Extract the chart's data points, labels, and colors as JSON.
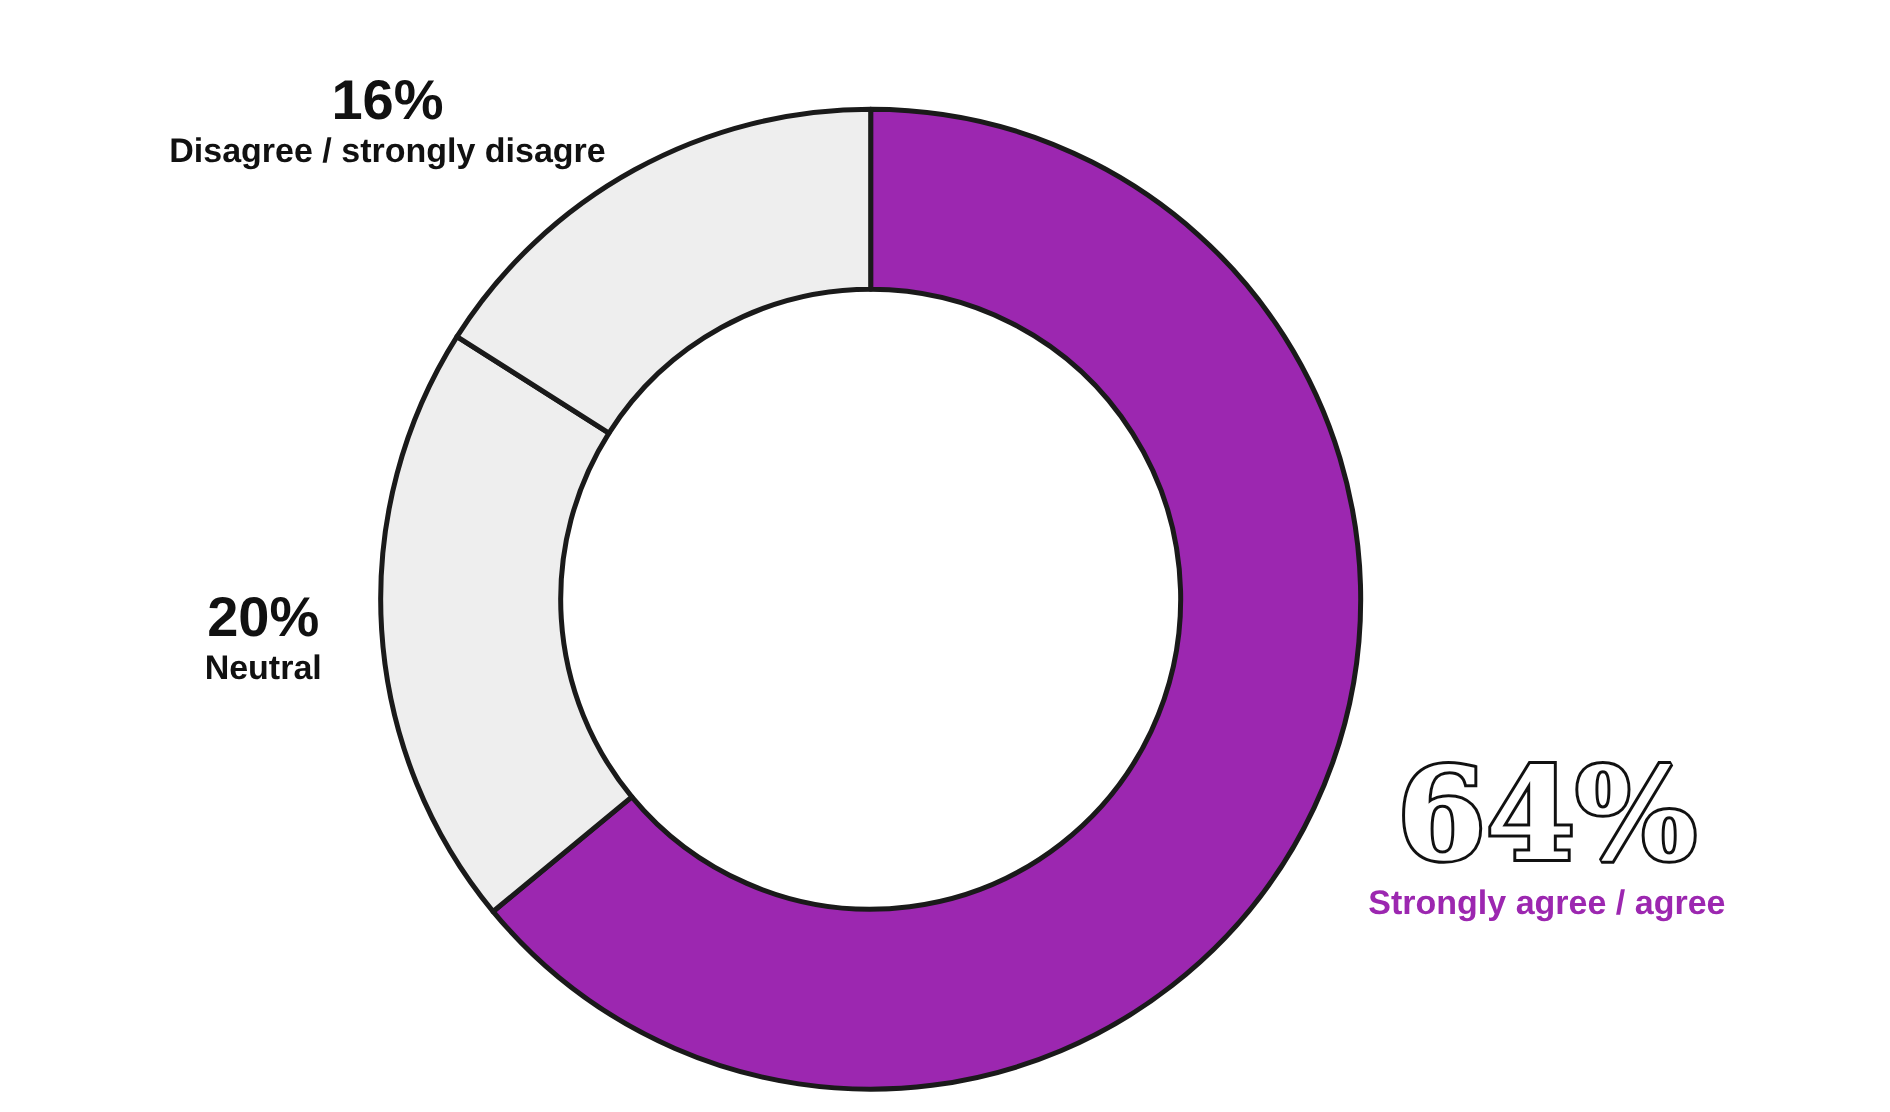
{
  "chart_data": {
    "type": "donut",
    "categories": [
      "Strongly agree / agree",
      "Neutral",
      "Disagree / strongly disagre"
    ],
    "values": [
      64,
      20,
      16
    ],
    "colors": [
      "#9c27b0",
      "#eeeeee",
      "#eeeeee"
    ],
    "value_labels": [
      "64%",
      "20%",
      "16%"
    ],
    "legend": false
  }
}
